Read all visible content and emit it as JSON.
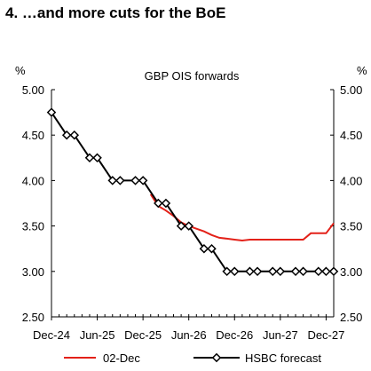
{
  "heading": "4. …and more cuts for the BoE",
  "chart_data": {
    "type": "line",
    "title": "GBP OIS forwards",
    "ylabel_left": "%",
    "ylabel_right": "%",
    "ylim": [
      2.5,
      5.0
    ],
    "y_ticks": [
      2.5,
      3.0,
      3.5,
      4.0,
      4.5,
      5.0
    ],
    "y_tick_labels": [
      "2.50",
      "3.00",
      "3.50",
      "4.00",
      "4.50",
      "5.00"
    ],
    "x_range": [
      "2024-12",
      "2028-01"
    ],
    "x_ticks": [
      "2024-12",
      "2025-06",
      "2025-12",
      "2026-06",
      "2026-12",
      "2027-06",
      "2027-12"
    ],
    "x_tick_labels": [
      "Dec-24",
      "Jun-25",
      "Dec-25",
      "Jun-26",
      "Dec-26",
      "Jun-27",
      "Dec-27"
    ],
    "grid": false,
    "legend_position": "bottom",
    "colors": {
      "forward": "#e32119",
      "forecast": "#000000"
    },
    "series": [
      {
        "name": "02-Dec",
        "style": "line",
        "x": [
          "2026-01",
          "2026-02",
          "2026-03",
          "2026-04",
          "2026-05",
          "2026-06",
          "2026-07",
          "2026-08",
          "2026-09",
          "2026-10",
          "2026-11",
          "2026-12",
          "2027-01",
          "2027-02",
          "2027-03",
          "2027-04",
          "2027-05",
          "2027-06",
          "2027-07",
          "2027-08",
          "2027-09",
          "2027-10",
          "2027-11",
          "2027-12",
          "2028-01"
        ],
        "values": [
          3.85,
          3.72,
          3.67,
          3.61,
          3.54,
          3.5,
          3.47,
          3.44,
          3.4,
          3.37,
          3.36,
          3.35,
          3.34,
          3.35,
          3.35,
          3.35,
          3.35,
          3.35,
          3.35,
          3.35,
          3.35,
          3.42,
          3.42,
          3.42,
          3.53
        ]
      },
      {
        "name": "HSBC forecast",
        "style": "line-markers",
        "x": [
          "2024-12",
          "2025-02",
          "2025-03",
          "2025-05",
          "2025-06",
          "2025-08",
          "2025-09",
          "2025-11",
          "2025-12",
          "2026-02",
          "2026-03",
          "2026-05",
          "2026-06",
          "2026-08",
          "2026-09",
          "2026-11",
          "2026-12",
          "2027-02",
          "2027-03",
          "2027-05",
          "2027-06",
          "2027-08",
          "2027-09",
          "2027-11",
          "2027-12",
          "2028-01"
        ],
        "values": [
          4.75,
          4.5,
          4.5,
          4.25,
          4.25,
          4.0,
          4.0,
          4.0,
          4.0,
          3.75,
          3.75,
          3.5,
          3.5,
          3.25,
          3.25,
          3.0,
          3.0,
          3.0,
          3.0,
          3.0,
          3.0,
          3.0,
          3.0,
          3.0,
          3.0,
          3.0
        ]
      }
    ]
  }
}
